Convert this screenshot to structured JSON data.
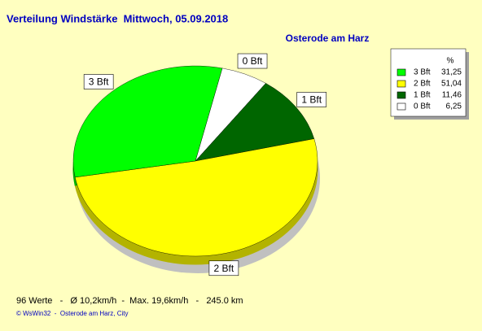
{
  "chart_data": {
    "type": "pie",
    "title": "Verteilung Windstärke  Mittwoch, 05.09.2018",
    "subtitle": "Osterode am Harz",
    "legend_header": "%",
    "series": [
      {
        "name": "3 Bft",
        "color": "#00ff00",
        "values": [
          31.25
        ],
        "value_labels": [
          "31,25"
        ]
      },
      {
        "name": "2 Bft",
        "color": "#ffff00",
        "values": [
          51.04
        ],
        "value_labels": [
          "51,04"
        ]
      },
      {
        "name": "1 Bft",
        "color": "#006600",
        "values": [
          11.46
        ],
        "value_labels": [
          "11,46"
        ]
      },
      {
        "name": "0 Bft",
        "color": "#ffffff",
        "values": [
          6.25
        ],
        "value_labels": [
          "6,25"
        ]
      }
    ],
    "footer": "96 Werte   -   Ø 10,2km/h  -  Max. 19,6km/h   -   245.0 km",
    "credit": "© WsWin32  -  Osterode am Harz, City"
  }
}
